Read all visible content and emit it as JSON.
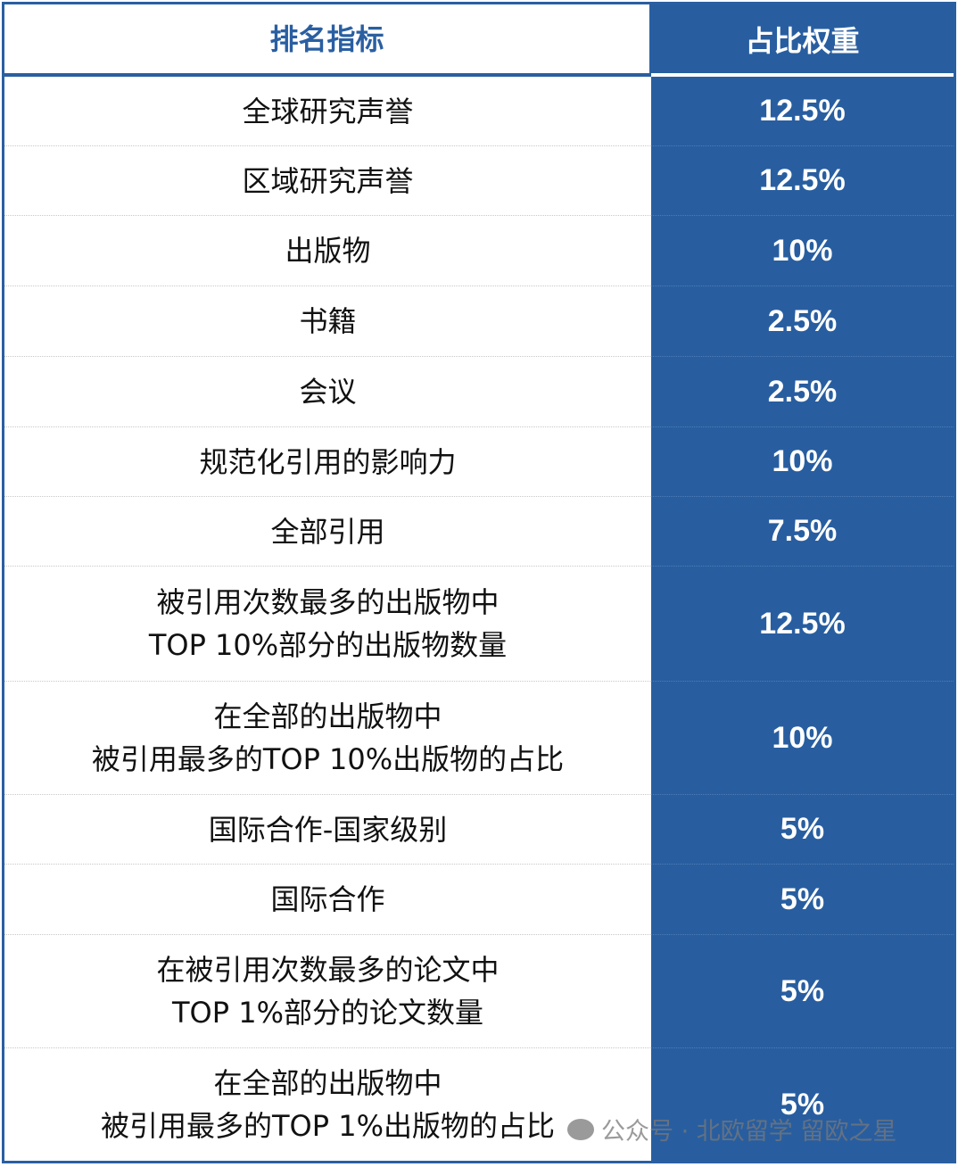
{
  "header": {
    "indicator": "排名指标",
    "weight": "占比权重"
  },
  "rows": [
    {
      "indicator": [
        "全球研究声誉"
      ],
      "weight": "12.5%"
    },
    {
      "indicator": [
        "区域研究声誉"
      ],
      "weight": "12.5%"
    },
    {
      "indicator": [
        "出版物"
      ],
      "weight": "10%"
    },
    {
      "indicator": [
        "书籍"
      ],
      "weight": "2.5%"
    },
    {
      "indicator": [
        "会议"
      ],
      "weight": "2.5%"
    },
    {
      "indicator": [
        "规范化引用的影响力"
      ],
      "weight": "10%"
    },
    {
      "indicator": [
        "全部引用"
      ],
      "weight": "7.5%"
    },
    {
      "indicator": [
        "被引用次数最多的出版物中",
        "TOP 10%部分的出版物数量"
      ],
      "weight": "12.5%"
    },
    {
      "indicator": [
        "在全部的出版物中",
        "被引用最多的TOP 10%出版物的占比"
      ],
      "weight": "10%"
    },
    {
      "indicator": [
        "国际合作-国家级别"
      ],
      "weight": "5%"
    },
    {
      "indicator": [
        "国际合作"
      ],
      "weight": "5%"
    },
    {
      "indicator": [
        "在被引用次数最多的论文中",
        "TOP 1%部分的论文数量"
      ],
      "weight": "5%"
    },
    {
      "indicator": [
        "在全部的出版物中",
        "被引用最多的TOP 1%出版物的占比"
      ],
      "weight": "5%"
    }
  ],
  "watermark": {
    "icon": "wechat-icon",
    "text": "公众号 · 北欧留学 留欧之星"
  },
  "colors": {
    "accent": "#285ea0"
  }
}
